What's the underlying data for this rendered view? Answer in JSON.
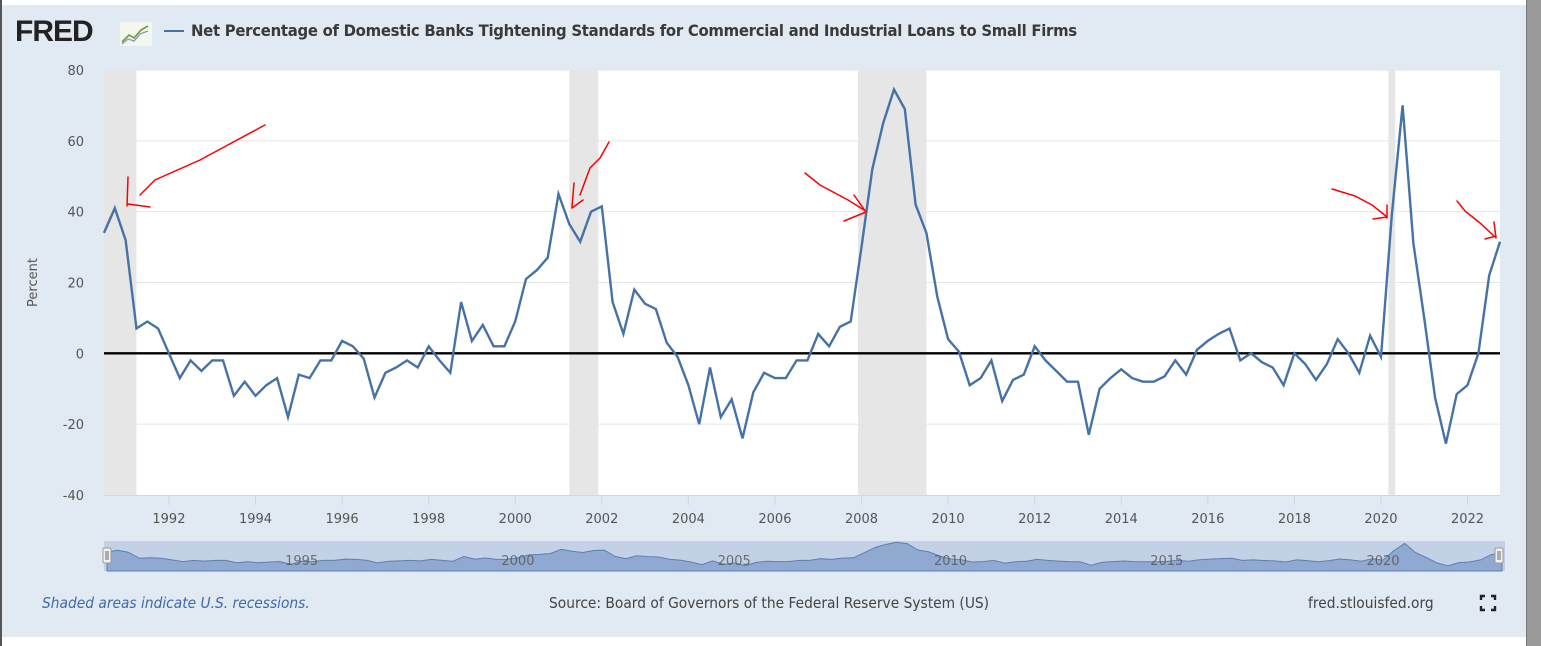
{
  "header": {
    "logo_text": "FRED",
    "logo_icon": "line-chart-icon",
    "series_title": "Net Percentage of Domestic Banks Tightening Standards for Commercial and Industrial Loans to Small Firms"
  },
  "footer": {
    "recession_note": "Shaded areas indicate U.S. recessions.",
    "source": "Source: Board of Governors of the Federal Reserve System (US)",
    "site": "fred.stlouisfed.org",
    "fullscreen_icon": "fullscreen-icon"
  },
  "colors": {
    "series": "#4572a7",
    "recession": "#e6e6e6",
    "panel": "#e1e9f2",
    "zero_line": "#000000",
    "annotation": "#ff0000"
  },
  "chart_data": {
    "type": "line",
    "title": "Net Percentage of Domestic Banks Tightening Standards for Commercial and Industrial Loans to Small Firms",
    "xlabel": "",
    "ylabel": "Percent",
    "ylim": [
      -40,
      80
    ],
    "yticks": [
      80,
      60,
      40,
      20,
      0,
      -20,
      -40
    ],
    "ytick_labels": [
      "80",
      "60",
      "40",
      "20",
      "0",
      "-20",
      "-40"
    ],
    "xlim": [
      1990.5,
      2022.75
    ],
    "xticks": [
      1992,
      1994,
      1996,
      1998,
      2000,
      2002,
      2004,
      2006,
      2008,
      2010,
      2012,
      2014,
      2016,
      2018,
      2020,
      2022
    ],
    "xtick_labels": [
      "1992",
      "1994",
      "1996",
      "1998",
      "2000",
      "2002",
      "2004",
      "2006",
      "2008",
      "2010",
      "2012",
      "2014",
      "2016",
      "2018",
      "2020",
      "2022"
    ],
    "grid": true,
    "legend": "top-left",
    "frequency": "quarterly",
    "x_start": 1990.5,
    "x_step": 0.25,
    "series": [
      {
        "name": "Net Percentage of Domestic Banks Tightening Standards for Commercial and Industrial Loans to Small Firms",
        "values": [
          34,
          41,
          32,
          7,
          9,
          7,
          0,
          -7,
          -2,
          -5,
          -2,
          -2,
          -12,
          -8,
          -12,
          -9,
          -7,
          -18,
          -6,
          -7,
          -2,
          -2,
          3.5,
          2,
          -1.5,
          -12.5,
          -5.5,
          -4,
          -2,
          -4,
          2,
          -2,
          -5.5,
          14.5,
          3.5,
          8,
          2,
          2,
          9,
          21,
          23.5,
          27,
          45,
          36.5,
          31.5,
          40,
          41.5,
          14.5,
          5.5,
          18,
          14,
          12.5,
          3,
          -1,
          -9,
          -20,
          -4,
          -18,
          -13,
          -24,
          -11,
          -5.5,
          -7,
          -7,
          -2,
          -2,
          5.5,
          2,
          7.5,
          9,
          30,
          52,
          65,
          74.5,
          69,
          42,
          34,
          16,
          4,
          0.5,
          -9,
          -7,
          -2,
          -13.5,
          -7.5,
          -6,
          2,
          -2,
          -5,
          -8,
          -8,
          -23,
          -10,
          -7,
          -4.5,
          -7,
          -8,
          -8,
          -6.5,
          -2,
          -6,
          1,
          3.5,
          5.5,
          7,
          -2,
          0,
          -2.5,
          -4,
          -9,
          0,
          -3,
          -7.5,
          -3,
          4,
          0,
          -5.5,
          5,
          -1,
          39,
          70,
          31,
          10,
          -12.5,
          -25.5,
          -11.5,
          -9,
          0,
          22,
          31.5
        ]
      }
    ],
    "recessions": [
      {
        "start": 1990.5,
        "end": 1991.25
      },
      {
        "start": 2001.25,
        "end": 2001.92
      },
      {
        "start": 2007.92,
        "end": 2009.5
      },
      {
        "start": 2020.17,
        "end": 2020.33
      }
    ],
    "navigator": {
      "labels": [
        "1995",
        "2000",
        "2005",
        "2010",
        "2015",
        "2020"
      ],
      "years": [
        1995,
        2000,
        2005,
        2010,
        2015,
        2020
      ]
    },
    "annotations": [
      {
        "type": "hand-drawn-arrow",
        "target_x": 1990.9,
        "target_y": 42
      },
      {
        "type": "hand-drawn-arrow",
        "target_x": 2001.25,
        "target_y": 41
      },
      {
        "type": "hand-drawn-arrow",
        "target_x": 2008.0,
        "target_y": 39
      },
      {
        "type": "hand-drawn-arrow",
        "target_x": 2020.2,
        "target_y": 38
      },
      {
        "type": "hand-drawn-arrow",
        "target_x": 2022.7,
        "target_y": 33
      }
    ]
  }
}
